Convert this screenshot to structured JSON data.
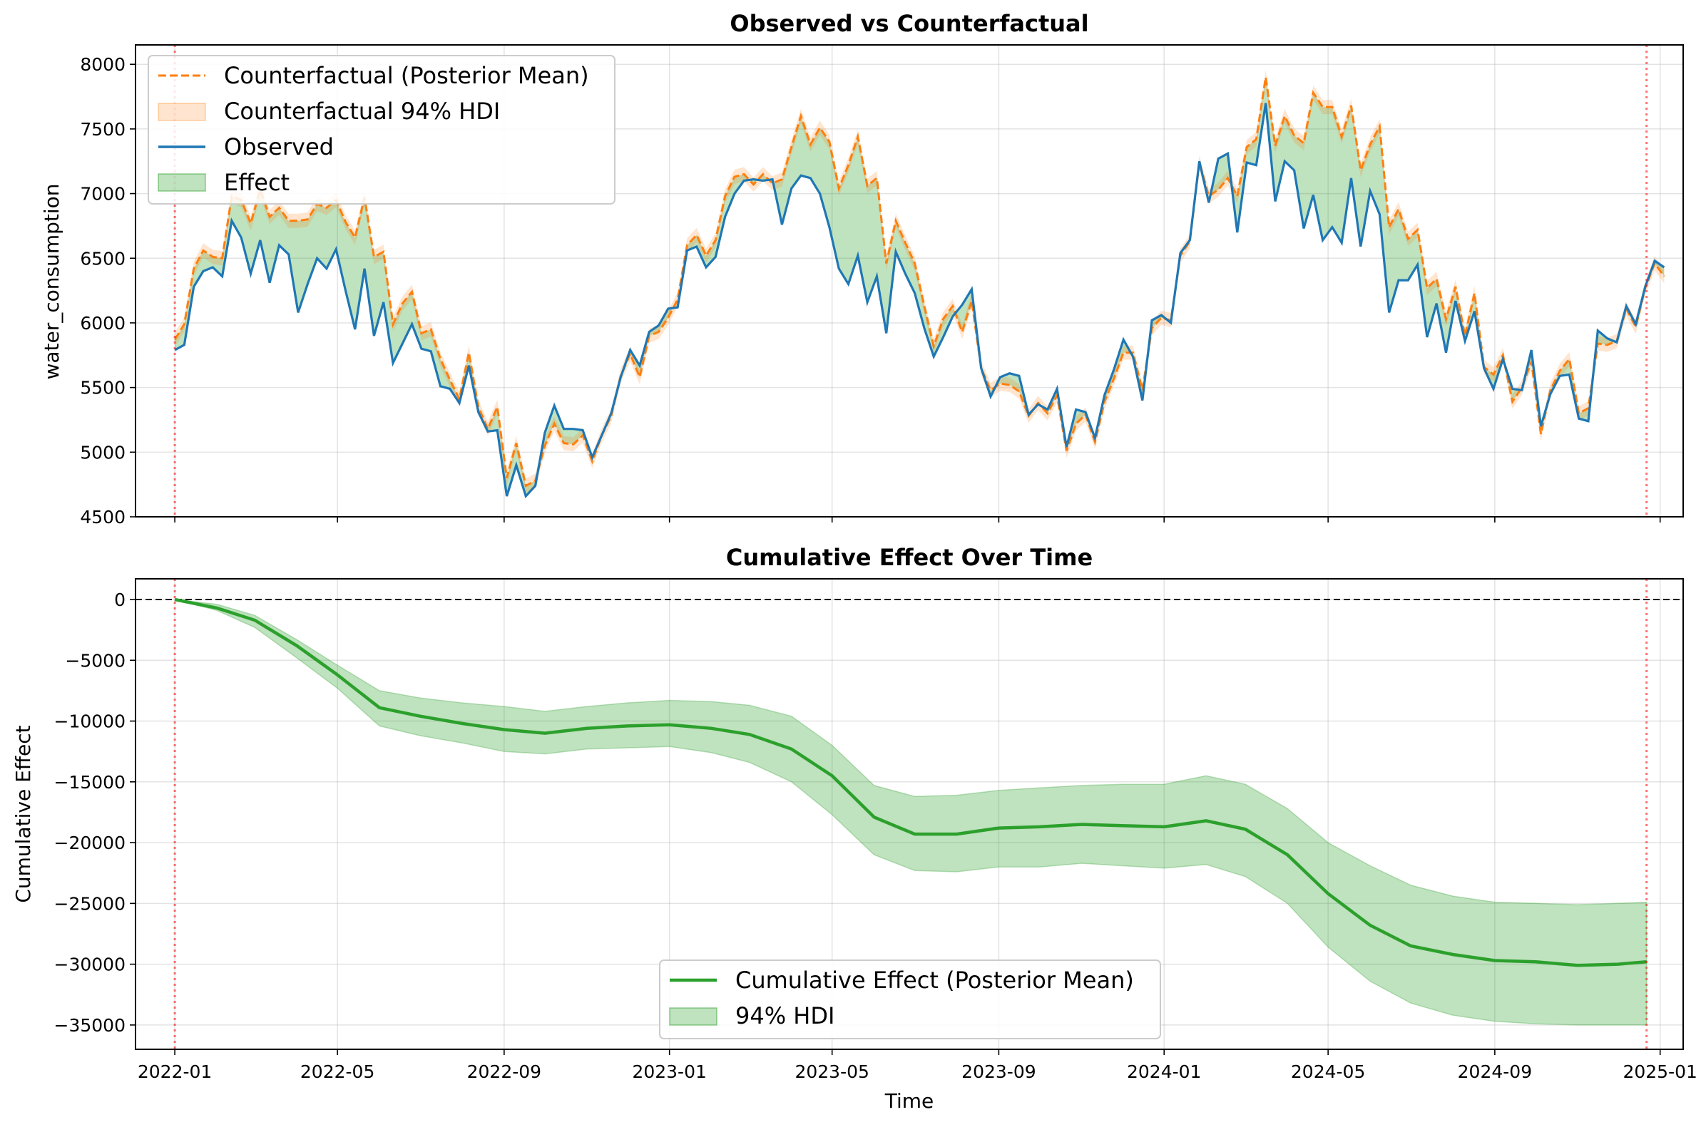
{
  "chart_data": [
    {
      "type": "line",
      "title": "Observed vs Counterfactual",
      "xlabel": "",
      "ylabel": "water_consumption",
      "ylim": [
        4500,
        8150
      ],
      "yticks": [
        4500,
        5000,
        5500,
        6000,
        6500,
        7000,
        7500,
        8000
      ],
      "xlim": [
        "2021-12-03",
        "2025-01-18"
      ],
      "grid": true,
      "legend_position": "top-left",
      "intervention_markers": [
        "2022-01-01",
        "2024-12-22"
      ],
      "legend": [
        {
          "label": "Counterfactual (Posterior Mean)",
          "style": "dashed-line",
          "color": "#ff7f0e"
        },
        {
          "label": "Counterfactual 94% HDI",
          "style": "band",
          "color": "#ff7f0e"
        },
        {
          "label": "Observed",
          "style": "line",
          "color": "#1f77b4"
        },
        {
          "label": "Effect",
          "style": "band",
          "color": "#2ca02c"
        }
      ],
      "x_start": "2022-01-01",
      "x_step_days": 7,
      "series": [
        {
          "name": "Observed",
          "values": [
            5790,
            5830,
            6280,
            6400,
            6430,
            6360,
            6790,
            6660,
            6380,
            6640,
            6310,
            6600,
            6530,
            6080,
            6300,
            6500,
            6420,
            6570,
            6250,
            5950,
            6420,
            5900,
            6160,
            5690,
            5840,
            5990,
            5800,
            5780,
            5510,
            5490,
            5380,
            5670,
            5310,
            5160,
            5170,
            4660,
            4900,
            4660,
            4740,
            5150,
            5360,
            5180,
            5180,
            5170,
            4960,
            5130,
            5300,
            5580,
            5790,
            5670,
            5930,
            5980,
            6110,
            6120,
            6560,
            6590,
            6430,
            6510,
            6820,
            7000,
            7100,
            7110,
            7100,
            7110,
            6760,
            7040,
            7140,
            7120,
            7000,
            6740,
            6420,
            6300,
            6520,
            6160,
            6360,
            5920,
            6550,
            6380,
            6230,
            5960,
            5740,
            5890,
            6050,
            6140,
            6260,
            5650,
            5430,
            5580,
            5610,
            5590,
            5290,
            5370,
            5330,
            5490,
            5040,
            5330,
            5310,
            5110,
            5440,
            5640,
            5870,
            5740,
            5400,
            6020,
            6060,
            6000,
            6540,
            6640,
            7250,
            6930,
            7270,
            7310,
            6700,
            7240,
            7220,
            7700,
            6940,
            7250,
            7180,
            6730,
            6990,
            6640,
            6740,
            6620,
            7120,
            6590,
            7020,
            6840,
            6080,
            6330,
            6330,
            6450,
            5890,
            6150,
            5770,
            6170,
            5860,
            6090,
            5650,
            5490,
            5720,
            5490,
            5480,
            5790,
            5200,
            5450,
            5590,
            5600,
            5260,
            5240,
            5940,
            5880,
            5850,
            6130,
            5990,
            6280,
            6480,
            6430
          ]
        },
        {
          "name": "Counterfactual (Posterior Mean)",
          "values": [
            5870,
            5990,
            6420,
            6560,
            6510,
            6500,
            6980,
            6950,
            6770,
            7030,
            6820,
            6890,
            6790,
            6790,
            6800,
            6920,
            6890,
            6950,
            6780,
            6660,
            6970,
            6510,
            6550,
            5990,
            6150,
            6240,
            5920,
            5950,
            5720,
            5560,
            5410,
            5770,
            5350,
            5180,
            5350,
            4800,
            5070,
            4740,
            4780,
            5050,
            5220,
            5070,
            5060,
            5130,
            4930,
            5130,
            5280,
            5590,
            5760,
            5580,
            5900,
            5930,
            6040,
            6180,
            6600,
            6680,
            6520,
            6640,
            6980,
            7130,
            7150,
            7070,
            7150,
            7080,
            7110,
            7360,
            7600,
            7380,
            7510,
            7400,
            7040,
            7220,
            7440,
            7060,
            7120,
            6460,
            6790,
            6620,
            6460,
            6130,
            5820,
            6030,
            6130,
            5930,
            6170,
            5650,
            5480,
            5530,
            5520,
            5470,
            5280,
            5380,
            5300,
            5440,
            5010,
            5220,
            5290,
            5080,
            5390,
            5570,
            5770,
            5770,
            5480,
            5960,
            6040,
            6020,
            6520,
            6630,
            7240,
            6980,
            7030,
            7120,
            6980,
            7360,
            7420,
            7900,
            7370,
            7600,
            7450,
            7390,
            7780,
            7670,
            7670,
            7440,
            7680,
            7180,
            7380,
            7520,
            6740,
            6880,
            6650,
            6720,
            6270,
            6340,
            6030,
            6280,
            5900,
            6230,
            5660,
            5600,
            5750,
            5390,
            5500,
            5700,
            5140,
            5480,
            5630,
            5720,
            5300,
            5340,
            5840,
            5830,
            5860,
            6110,
            5970,
            6270,
            6460,
            6360
          ]
        }
      ]
    },
    {
      "type": "area",
      "title": "Cumulative Effect Over Time",
      "xlabel": "Time",
      "ylabel": "Cumulative Effect",
      "ylim": [
        -37000,
        1700
      ],
      "yticks": [
        0,
        -5000,
        -10000,
        -15000,
        -20000,
        -25000,
        -30000,
        -35000
      ],
      "xlim": [
        "2021-12-03",
        "2025-01-18"
      ],
      "xticks": [
        "2022-01",
        "2022-05",
        "2022-09",
        "2023-01",
        "2023-05",
        "2023-09",
        "2024-01",
        "2024-05",
        "2024-09",
        "2025-01"
      ],
      "grid": true,
      "legend_position": "bottom-center",
      "reference_line": 0,
      "intervention_markers": [
        "2022-01-01",
        "2024-12-22"
      ],
      "legend": [
        {
          "label": "Cumulative Effect (Posterior Mean)",
          "style": "line",
          "color": "#2ca02c"
        },
        {
          "label": "94% HDI",
          "style": "band",
          "color": "#2ca02c"
        }
      ],
      "x": [
        "2022-01-01",
        "2022-02-01",
        "2022-03-01",
        "2022-04-01",
        "2022-05-01",
        "2022-06-01",
        "2022-07-01",
        "2022-08-01",
        "2022-09-01",
        "2022-10-01",
        "2022-11-01",
        "2022-12-01",
        "2023-01-01",
        "2023-02-01",
        "2023-03-01",
        "2023-04-01",
        "2023-05-01",
        "2023-06-01",
        "2023-07-01",
        "2023-08-01",
        "2023-09-01",
        "2023-10-01",
        "2023-11-01",
        "2023-12-01",
        "2024-01-01",
        "2024-02-01",
        "2024-03-01",
        "2024-04-01",
        "2024-05-01",
        "2024-06-01",
        "2024-07-01",
        "2024-08-01",
        "2024-09-01",
        "2024-10-01",
        "2024-11-01",
        "2024-12-01",
        "2024-12-22"
      ],
      "series": [
        {
          "name": "Cumulative Effect (Posterior Mean)",
          "values": [
            0,
            -700,
            -1700,
            -3800,
            -6200,
            -8900,
            -9600,
            -10200,
            -10700,
            -11000,
            -10600,
            -10400,
            -10300,
            -10600,
            -11100,
            -12300,
            -14500,
            -17900,
            -19300,
            -19300,
            -18800,
            -18700,
            -18500,
            -18600,
            -18700,
            -18200,
            -18900,
            -21000,
            -24200,
            -26800,
            -28500,
            -29200,
            -29700,
            -29800,
            -30100,
            -30000,
            -29800
          ]
        },
        {
          "name": "94% HDI upper",
          "values": [
            0,
            -400,
            -1300,
            -3300,
            -5400,
            -7500,
            -8100,
            -8500,
            -8800,
            -9200,
            -8800,
            -8500,
            -8300,
            -8400,
            -8700,
            -9600,
            -12000,
            -15300,
            -16200,
            -16100,
            -15700,
            -15500,
            -15300,
            -15200,
            -15200,
            -14500,
            -15200,
            -17200,
            -20000,
            -21900,
            -23500,
            -24400,
            -24900,
            -25000,
            -25100,
            -25000,
            -24900
          ]
        },
        {
          "name": "94% HDI lower",
          "values": [
            0,
            -900,
            -2300,
            -4800,
            -7300,
            -10400,
            -11200,
            -11800,
            -12500,
            -12700,
            -12300,
            -12200,
            -12100,
            -12600,
            -13400,
            -15000,
            -17700,
            -21000,
            -22300,
            -22400,
            -22000,
            -22000,
            -21700,
            -21900,
            -22100,
            -21800,
            -22800,
            -25000,
            -28600,
            -31400,
            -33200,
            -34200,
            -34700,
            -34900,
            -35000,
            -35000,
            -35000
          ]
        }
      ]
    }
  ]
}
